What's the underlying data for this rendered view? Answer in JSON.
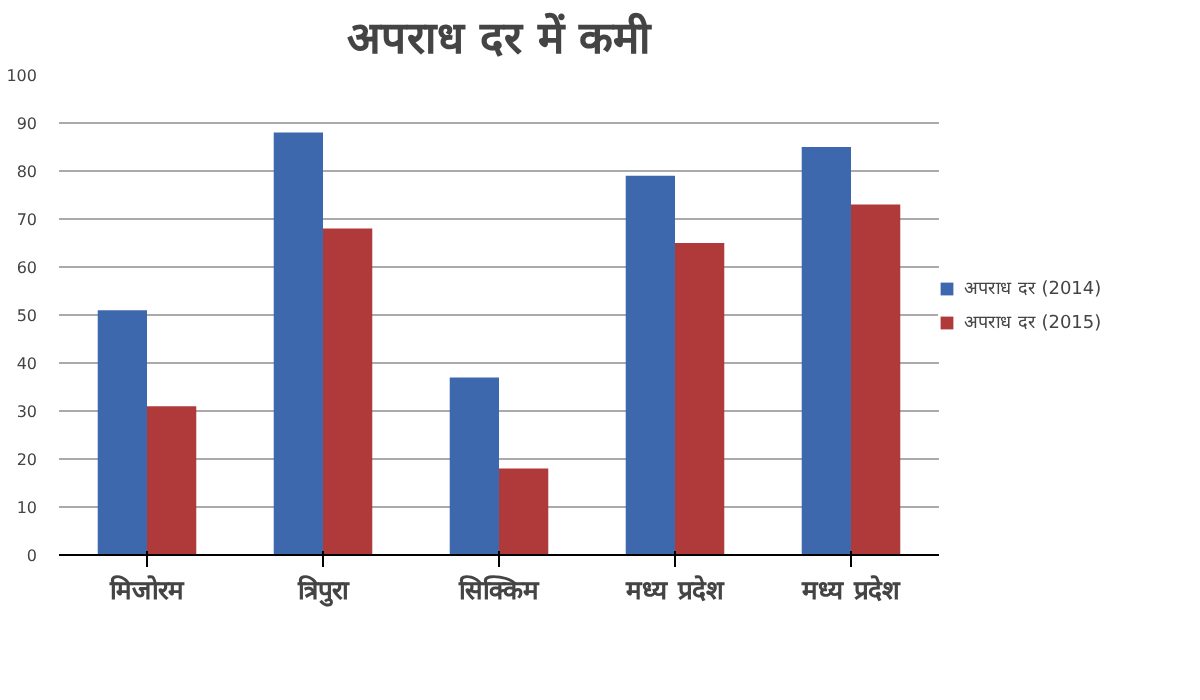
{
  "chart_data": {
    "type": "bar",
    "title": "अपराध दर में कमी",
    "categories": [
      "मिजोरम",
      "त्रिपुरा",
      "सिक्किम",
      "मध्य प्रदेश",
      "मध्य प्रदेश"
    ],
    "series": [
      {
        "name": "अपराध दर (2014)",
        "color": "#3d68ad",
        "values": [
          51,
          88,
          37,
          79,
          85
        ]
      },
      {
        "name": "अपराध दर (2015)",
        "color": "#b03a3a",
        "values": [
          31,
          68,
          18,
          65,
          73
        ]
      }
    ],
    "ylim": [
      0,
      100
    ],
    "yticks": [
      0,
      10,
      20,
      30,
      40,
      50,
      60,
      70,
      80,
      90,
      100
    ],
    "grid": "y",
    "legend": "right"
  }
}
